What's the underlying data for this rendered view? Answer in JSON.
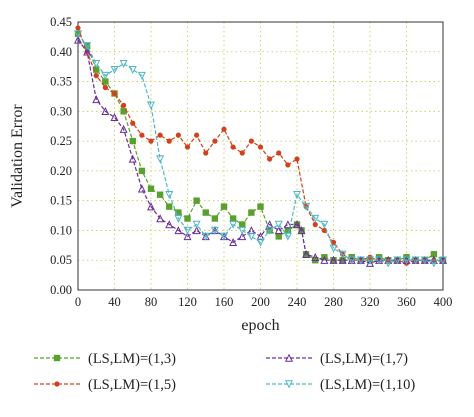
{
  "chart_data": {
    "type": "line",
    "xlabel": "epoch",
    "ylabel": "Validation Error",
    "xlim": [
      0,
      400
    ],
    "ylim": [
      0,
      0.45
    ],
    "xticks": [
      "0",
      "40",
      "80",
      "120",
      "160",
      "200",
      "240",
      "280",
      "320",
      "360",
      "400"
    ],
    "yticks": [
      "0.00",
      "0.05",
      "0.10",
      "0.15",
      "0.20",
      "0.25",
      "0.30",
      "0.35",
      "0.40",
      "0.45"
    ],
    "grid": true,
    "legend_position": "below",
    "series": [
      {
        "name": "(LS,LM)=(1,3)",
        "color": "#5aa02c",
        "marker": "square",
        "x": [
          0,
          10,
          20,
          30,
          40,
          50,
          60,
          70,
          80,
          90,
          100,
          110,
          120,
          130,
          140,
          150,
          160,
          170,
          180,
          190,
          200,
          210,
          220,
          230,
          240,
          245,
          250,
          260,
          270,
          280,
          290,
          300,
          310,
          320,
          330,
          340,
          350,
          360,
          370,
          380,
          390,
          400
        ],
        "y": [
          0.43,
          0.41,
          0.37,
          0.35,
          0.33,
          0.3,
          0.25,
          0.2,
          0.17,
          0.16,
          0.14,
          0.13,
          0.12,
          0.15,
          0.13,
          0.12,
          0.14,
          0.12,
          0.11,
          0.13,
          0.14,
          0.1,
          0.09,
          0.1,
          0.11,
          0.1,
          0.06,
          0.05,
          0.055,
          0.05,
          0.05,
          0.055,
          0.05,
          0.05,
          0.055,
          0.05,
          0.05,
          0.055,
          0.05,
          0.05,
          0.06,
          0.05
        ]
      },
      {
        "name": "(LS,LM)=(1,5)",
        "color": "#d4401c",
        "marker": "circle",
        "x": [
          0,
          10,
          20,
          30,
          40,
          50,
          60,
          70,
          80,
          90,
          100,
          110,
          120,
          130,
          140,
          150,
          160,
          170,
          180,
          190,
          200,
          210,
          220,
          230,
          240,
          250,
          260,
          270,
          280,
          290,
          300,
          310,
          320,
          330,
          340,
          350,
          360,
          370,
          380,
          390,
          400
        ],
        "y": [
          0.44,
          0.4,
          0.36,
          0.34,
          0.33,
          0.31,
          0.28,
          0.26,
          0.25,
          0.26,
          0.25,
          0.26,
          0.24,
          0.26,
          0.23,
          0.25,
          0.27,
          0.24,
          0.23,
          0.25,
          0.24,
          0.22,
          0.23,
          0.21,
          0.22,
          0.14,
          0.11,
          0.1,
          0.08,
          0.06,
          0.05,
          0.05,
          0.055,
          0.05,
          0.05,
          0.05,
          0.045,
          0.05,
          0.05,
          0.05,
          0.05
        ]
      },
      {
        "name": "(LS,LM)=(1,7)",
        "color": "#6a2c9e",
        "marker": "triangle",
        "x": [
          0,
          10,
          20,
          30,
          40,
          50,
          60,
          70,
          80,
          90,
          100,
          110,
          120,
          130,
          140,
          150,
          160,
          170,
          180,
          190,
          200,
          210,
          220,
          230,
          240,
          245,
          250,
          260,
          270,
          280,
          290,
          300,
          310,
          320,
          330,
          340,
          350,
          360,
          370,
          380,
          390,
          400
        ],
        "y": [
          0.42,
          0.4,
          0.32,
          0.3,
          0.29,
          0.27,
          0.22,
          0.17,
          0.14,
          0.12,
          0.11,
          0.1,
          0.09,
          0.1,
          0.09,
          0.1,
          0.09,
          0.08,
          0.09,
          0.1,
          0.09,
          0.11,
          0.1,
          0.11,
          0.11,
          0.1,
          0.06,
          0.055,
          0.05,
          0.05,
          0.05,
          0.05,
          0.05,
          0.045,
          0.05,
          0.05,
          0.05,
          0.05,
          0.05,
          0.05,
          0.05,
          0.05
        ]
      },
      {
        "name": "(LS,LM)=(1,10)",
        "color": "#4fb8c4",
        "marker": "triangle-down",
        "x": [
          0,
          10,
          20,
          30,
          40,
          50,
          60,
          70,
          80,
          90,
          100,
          110,
          120,
          130,
          140,
          150,
          160,
          170,
          180,
          190,
          200,
          210,
          220,
          230,
          240,
          250,
          260,
          270,
          280,
          290,
          300,
          310,
          320,
          330,
          340,
          350,
          360,
          370,
          380,
          390,
          400
        ],
        "y": [
          0.43,
          0.41,
          0.38,
          0.36,
          0.37,
          0.38,
          0.37,
          0.36,
          0.31,
          0.22,
          0.16,
          0.12,
          0.1,
          0.11,
          0.09,
          0.1,
          0.09,
          0.11,
          0.1,
          0.09,
          0.08,
          0.1,
          0.11,
          0.09,
          0.16,
          0.14,
          0.12,
          0.11,
          0.07,
          0.06,
          0.05,
          0.05,
          0.05,
          0.05,
          0.045,
          0.05,
          0.05,
          0.05,
          0.05,
          0.045,
          0.05
        ]
      }
    ]
  }
}
